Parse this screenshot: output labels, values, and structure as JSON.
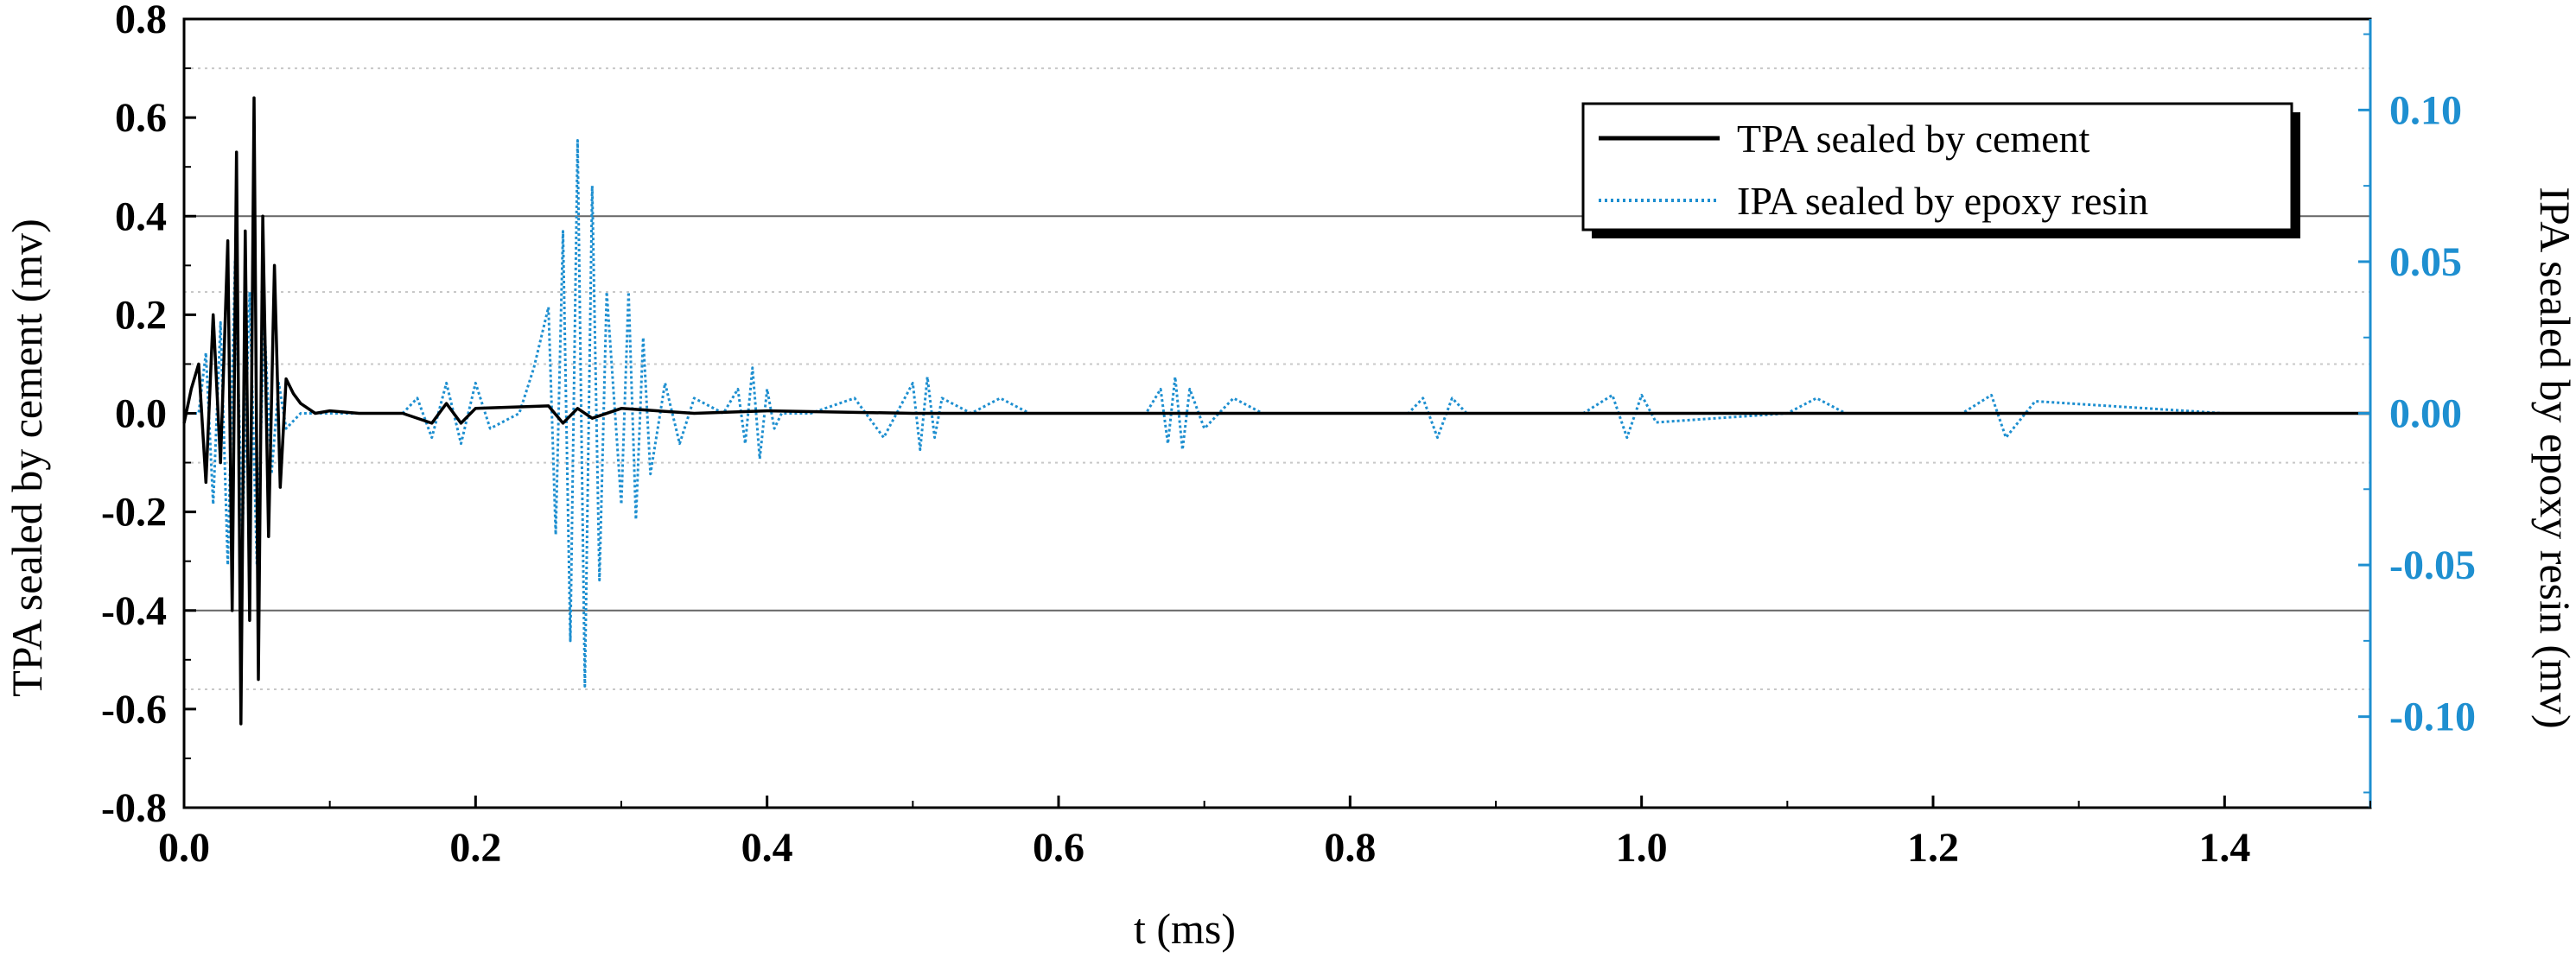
{
  "colors": {
    "cement": "#000000",
    "epoxy": "#1e8fd0",
    "right_axis": "#1e8fd0",
    "grid_major": "#666666",
    "grid_minor": "#c8c8c8"
  },
  "chart_data": {
    "type": "line",
    "title": "",
    "xlabel": "t (ms)",
    "ylabel_left": "TPA sealed by cement (mv)",
    "ylabel_right": "IPA sealed by epoxy resin (mv)",
    "xlim": [
      0,
      1.5
    ],
    "ylim_left": [
      -0.8,
      0.8
    ],
    "ylim_right": [
      -0.13,
      0.13
    ],
    "x_ticks": [
      "0.0",
      "0.2",
      "0.4",
      "0.6",
      "0.8",
      "1.0",
      "1.2",
      "1.4"
    ],
    "y_ticks_left": [
      "-0.8",
      "-0.6",
      "-0.4",
      "-0.2",
      "0.0",
      "0.2",
      "0.4",
      "0.6",
      "0.8"
    ],
    "y_ticks_right": [
      "-0.10",
      "-0.05",
      "0.00",
      "0.05",
      "0.10"
    ],
    "grid": true,
    "legend_position": "top-right",
    "legend": [
      "TPA sealed by cement",
      "IPA sealed by epoxy resin"
    ],
    "series": [
      {
        "name": "TPA sealed by cement",
        "axis": "left",
        "style": "solid",
        "x": [
          0.0,
          0.005,
          0.01,
          0.015,
          0.02,
          0.025,
          0.03,
          0.033,
          0.036,
          0.039,
          0.042,
          0.045,
          0.048,
          0.051,
          0.054,
          0.058,
          0.062,
          0.066,
          0.07,
          0.075,
          0.08,
          0.09,
          0.1,
          0.12,
          0.15,
          0.17,
          0.18,
          0.19,
          0.2,
          0.25,
          0.26,
          0.27,
          0.28,
          0.3,
          0.35,
          0.4,
          0.5,
          0.6,
          0.8,
          1.0,
          1.2,
          1.4,
          1.5
        ],
        "y": [
          -0.02,
          0.05,
          0.1,
          -0.14,
          0.2,
          -0.1,
          0.35,
          -0.4,
          0.53,
          -0.63,
          0.37,
          -0.42,
          0.64,
          -0.54,
          0.4,
          -0.25,
          0.3,
          -0.15,
          0.07,
          0.04,
          0.02,
          0.0,
          0.005,
          0.0,
          0.0,
          -0.02,
          0.02,
          -0.02,
          0.01,
          0.015,
          -0.02,
          0.01,
          -0.01,
          0.01,
          0.0,
          0.005,
          0.0,
          0.0,
          0.0,
          0.0,
          0.0,
          0.0,
          0.0
        ]
      },
      {
        "name": "IPA sealed by epoxy resin",
        "axis": "right",
        "style": "dotted",
        "x": [
          0.0,
          0.01,
          0.015,
          0.02,
          0.025,
          0.03,
          0.035,
          0.04,
          0.045,
          0.05,
          0.055,
          0.06,
          0.065,
          0.07,
          0.08,
          0.1,
          0.15,
          0.16,
          0.17,
          0.18,
          0.19,
          0.2,
          0.21,
          0.23,
          0.24,
          0.25,
          0.255,
          0.26,
          0.265,
          0.27,
          0.275,
          0.28,
          0.285,
          0.29,
          0.3,
          0.305,
          0.31,
          0.315,
          0.32,
          0.33,
          0.34,
          0.35,
          0.37,
          0.38,
          0.385,
          0.39,
          0.395,
          0.4,
          0.405,
          0.41,
          0.43,
          0.46,
          0.48,
          0.5,
          0.505,
          0.51,
          0.515,
          0.52,
          0.54,
          0.56,
          0.58,
          0.66,
          0.67,
          0.675,
          0.68,
          0.685,
          0.69,
          0.7,
          0.72,
          0.74,
          0.84,
          0.85,
          0.86,
          0.87,
          0.88,
          0.96,
          0.98,
          0.99,
          1.0,
          1.01,
          1.1,
          1.12,
          1.14,
          1.22,
          1.24,
          1.25,
          1.27,
          1.4,
          1.5
        ],
        "y": [
          0.0,
          0.0,
          0.02,
          -0.03,
          0.03,
          -0.05,
          0.05,
          -0.04,
          0.04,
          -0.05,
          0.03,
          -0.02,
          0.01,
          -0.005,
          0.0,
          0.0,
          0.0,
          0.005,
          -0.008,
          0.01,
          -0.01,
          0.01,
          -0.005,
          0.0,
          0.015,
          0.035,
          -0.04,
          0.06,
          -0.075,
          0.09,
          -0.09,
          0.075,
          -0.055,
          0.04,
          -0.03,
          0.04,
          -0.035,
          0.025,
          -0.02,
          0.01,
          -0.01,
          0.005,
          0.0,
          0.008,
          -0.01,
          0.015,
          -0.015,
          0.008,
          -0.005,
          0.0,
          0.0,
          0.005,
          -0.008,
          0.01,
          -0.012,
          0.012,
          -0.008,
          0.005,
          0.0,
          0.005,
          0.0,
          0.0,
          0.008,
          -0.01,
          0.012,
          -0.012,
          0.008,
          -0.005,
          0.005,
          0.0,
          0.0,
          0.005,
          -0.008,
          0.005,
          0.0,
          0.0,
          0.006,
          -0.008,
          0.006,
          -0.003,
          0.0,
          0.005,
          0.0,
          0.0,
          0.006,
          -0.008,
          0.004,
          0.0,
          0.0
        ]
      }
    ]
  }
}
